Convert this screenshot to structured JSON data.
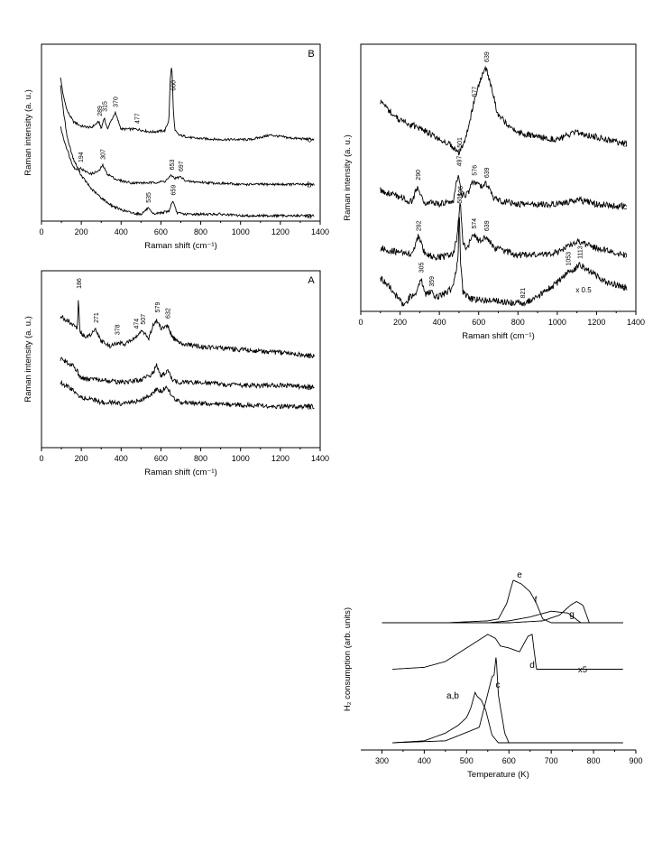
{
  "colors": {
    "ink": "#000000",
    "background": "#ffffff"
  },
  "chart_data": [
    {
      "panel_label": "B",
      "type": "line",
      "xlabel": "Raman shift (cm⁻¹)",
      "ylabel": "Raman intensity (a. u.)",
      "xlim": [
        0,
        1400
      ],
      "xticks": [
        0,
        200,
        400,
        600,
        800,
        1000,
        1200,
        1400
      ],
      "legend": "series letters at right end of each trace",
      "series": [
        {
          "name": "c",
          "x": [
            95,
            110,
            130,
            160,
            200,
            250,
            289,
            300,
            315,
            330,
            370,
            400,
            477,
            550,
            620,
            640,
            648,
            655,
            662,
            670,
            690,
            760,
            900,
            1050,
            1150,
            1250,
            1370
          ],
          "y": [
            93,
            80,
            70,
            63,
            60,
            59,
            63,
            58,
            66,
            58,
            69,
            58,
            58,
            56,
            57,
            64,
            95,
            100,
            72,
            57,
            54,
            52,
            51,
            51,
            54,
            52,
            51
          ]
        },
        {
          "name": "b",
          "x": [
            95,
            110,
            130,
            150,
            170,
            194,
            215,
            250,
            290,
            307,
            330,
            380,
            450,
            550,
            620,
            653,
            670,
            697,
            730,
            850,
            1000,
            1200,
            1370
          ],
          "y": [
            60,
            52,
            44,
            36,
            31,
            32,
            30,
            28,
            30,
            34,
            28,
            24,
            22,
            22,
            23,
            27,
            25,
            26,
            23,
            22,
            21,
            21,
            21
          ],
          "start_y": 60
        },
        {
          "name": "a",
          "x": [
            95,
            110,
            130,
            160,
            200,
            250,
            300,
            350,
            400,
            450,
            500,
            535,
            560,
            600,
            640,
            659,
            680,
            720,
            800,
            900,
            1000,
            1100,
            1200,
            1370
          ],
          "y": [
            88,
            70,
            52,
            38,
            27,
            18,
            12,
            7,
            4,
            2,
            1,
            5,
            1,
            2,
            3,
            10,
            2,
            1,
            1,
            1,
            0,
            0,
            0,
            0
          ]
        }
      ],
      "annotations": [
        {
          "series": "c",
          "labels": [
            "289",
            "315",
            "370",
            "477",
            "660"
          ]
        },
        {
          "series": "b",
          "labels": [
            "194",
            "307",
            "653",
            "697"
          ]
        },
        {
          "series": "a",
          "labels": [
            "535",
            "659"
          ]
        }
      ]
    },
    {
      "panel_label": "",
      "type": "line",
      "xlabel": "Raman shift (cm⁻¹)",
      "ylabel": "Raman intensity (a. u.)",
      "xlim": [
        0,
        1400
      ],
      "xticks": [
        0,
        200,
        400,
        600,
        800,
        1000,
        1200,
        1400
      ],
      "series": [
        {
          "name": "d",
          "x": [
            100,
            200,
            300,
            400,
            450,
            501,
            530,
            560,
            577,
            600,
            620,
            639,
            660,
            700,
            800,
            900,
            1000,
            1100,
            1150,
            1250,
            1350
          ],
          "y": [
            88,
            80,
            77,
            72,
            70,
            66,
            72,
            82,
            88,
            95,
            100,
            103,
            96,
            82,
            75,
            73,
            72,
            75,
            74,
            72,
            70
          ]
        },
        {
          "name": "c",
          "x": [
            100,
            200,
            260,
            290,
            320,
            400,
            470,
            497,
            510,
            540,
            576,
            600,
            620,
            639,
            680,
            800,
            900,
            1000,
            1100,
            1200,
            1350
          ],
          "y": [
            50,
            47,
            45,
            52,
            45,
            44,
            45,
            58,
            48,
            48,
            54,
            52,
            52,
            53,
            46,
            44,
            44,
            44,
            46,
            44,
            43
          ]
        },
        {
          "name": "b",
          "x": [
            100,
            200,
            260,
            292,
            330,
            400,
            470,
            490,
            506,
            520,
            540,
            574,
            600,
            639,
            680,
            800,
            900,
            1000,
            1100,
            1200,
            1350
          ],
          "y": [
            25,
            23,
            22,
            30,
            22,
            21,
            22,
            30,
            45,
            28,
            25,
            31,
            28,
            30,
            25,
            22,
            22,
            23,
            28,
            25,
            22
          ]
        },
        {
          "name": "a",
          "x": [
            100,
            150,
            200,
            220,
            250,
            280,
            305,
            330,
            359,
            380,
            420,
            470,
            495,
            501,
            507,
            520,
            560,
            700,
            821,
            900,
            1000,
            1053,
            1080,
            1113,
            1150,
            1250,
            1350
          ],
          "y": [
            12,
            8,
            2,
            0,
            4,
            6,
            12,
            5,
            6,
            4,
            5,
            8,
            20,
            42,
            20,
            6,
            3,
            2,
            1,
            4,
            10,
            15,
            15,
            18,
            16,
            10,
            8
          ]
        }
      ],
      "series_notes": [
        "x 0.5"
      ],
      "annotations": [
        {
          "series": "d",
          "labels": [
            "501",
            "577",
            "639"
          ]
        },
        {
          "series": "c",
          "labels": [
            "290",
            "497",
            "576",
            "639"
          ]
        },
        {
          "series": "b",
          "labels": [
            "292",
            "506",
            "574",
            "639"
          ]
        },
        {
          "series": "a",
          "labels": [
            "305",
            "359",
            "501",
            "821",
            "1053",
            "1113"
          ]
        }
      ]
    },
    {
      "panel_label": "A",
      "type": "line",
      "xlabel": "Raman shift (cm⁻¹)",
      "ylabel": "Raman intensity (a. u.)",
      "xlim": [
        0,
        1400
      ],
      "xticks": [
        0,
        200,
        400,
        600,
        800,
        1000,
        1200,
        1400
      ],
      "series": [
        {
          "name": "c",
          "x": [
            95,
            150,
            180,
            186,
            192,
            230,
            271,
            300,
            350,
            378,
            420,
            474,
            507,
            540,
            560,
            579,
            600,
            632,
            660,
            700,
            800,
            1000,
            1200,
            1370
          ],
          "y": [
            84,
            80,
            76,
            98,
            74,
            70,
            75,
            68,
            64,
            67,
            66,
            71,
            74,
            70,
            78,
            82,
            76,
            78,
            70,
            66,
            64,
            62,
            60,
            58
          ]
        },
        {
          "name": "b",
          "x": [
            95,
            150,
            180,
            190,
            230,
            300,
            400,
            500,
            560,
            579,
            600,
            632,
            660,
            700,
            800,
            1000,
            1200,
            1370
          ],
          "y": [
            56,
            52,
            48,
            44,
            42,
            42,
            40,
            42,
            46,
            52,
            44,
            48,
            42,
            40,
            40,
            38,
            38,
            37
          ]
        },
        {
          "name": "a",
          "x": [
            95,
            150,
            200,
            300,
            400,
            500,
            560,
            579,
            600,
            632,
            660,
            700,
            800,
            1000,
            1200,
            1370
          ],
          "y": [
            40,
            36,
            30,
            27,
            26,
            28,
            33,
            36,
            34,
            37,
            30,
            27,
            26,
            25,
            24,
            24
          ]
        }
      ],
      "annotations": [
        {
          "labels": [
            "186",
            "271",
            "378",
            "474",
            "507",
            "579",
            "632"
          ]
        }
      ]
    },
    {
      "panel_label": "",
      "type": "line",
      "xlabel": "Temperature (K)",
      "ylabel": "H₂ consumption (arb. units)",
      "xlim": [
        250,
        900
      ],
      "xticks": [
        300,
        400,
        500,
        600,
        700,
        800,
        900
      ],
      "series": [
        {
          "name": "e",
          "x": [
            300,
            450,
            550,
            575,
            595,
            610,
            630,
            650,
            665,
            680,
            700,
            870
          ],
          "y": [
            62,
            62,
            63,
            64,
            72,
            84,
            82,
            78,
            72,
            64,
            62,
            62
          ]
        },
        {
          "name": "f",
          "x": [
            300,
            550,
            600,
            650,
            700,
            740,
            770,
            870
          ],
          "y": [
            62,
            62,
            63,
            65,
            68,
            67,
            62,
            62
          ]
        },
        {
          "name": "g",
          "x": [
            300,
            600,
            680,
            720,
            745,
            760,
            775,
            790,
            870
          ],
          "y": [
            62,
            62,
            63,
            66,
            71,
            73,
            71,
            62,
            62
          ]
        },
        {
          "name": "d",
          "x": [
            325,
            400,
            450,
            500,
            550,
            568,
            580,
            600,
            625,
            645,
            655,
            665,
            870
          ],
          "y": [
            38,
            39,
            42,
            49,
            56,
            54,
            50,
            49,
            47,
            55,
            56,
            38,
            38
          ]
        },
        {
          "name": "c",
          "x": [
            325,
            450,
            530,
            560,
            565,
            570,
            575,
            590,
            600,
            870
          ],
          "y": [
            0,
            1,
            8,
            34,
            35,
            45,
            25,
            5,
            0,
            0
          ]
        },
        {
          "name": "a,b",
          "x": [
            325,
            400,
            450,
            480,
            500,
            510,
            520,
            525,
            535,
            545,
            560,
            575,
            870
          ],
          "y": [
            0,
            1,
            5,
            9,
            13,
            18,
            26,
            24,
            22,
            17,
            4,
            0,
            0
          ]
        }
      ],
      "series_notes": [
        "x5"
      ]
    }
  ]
}
